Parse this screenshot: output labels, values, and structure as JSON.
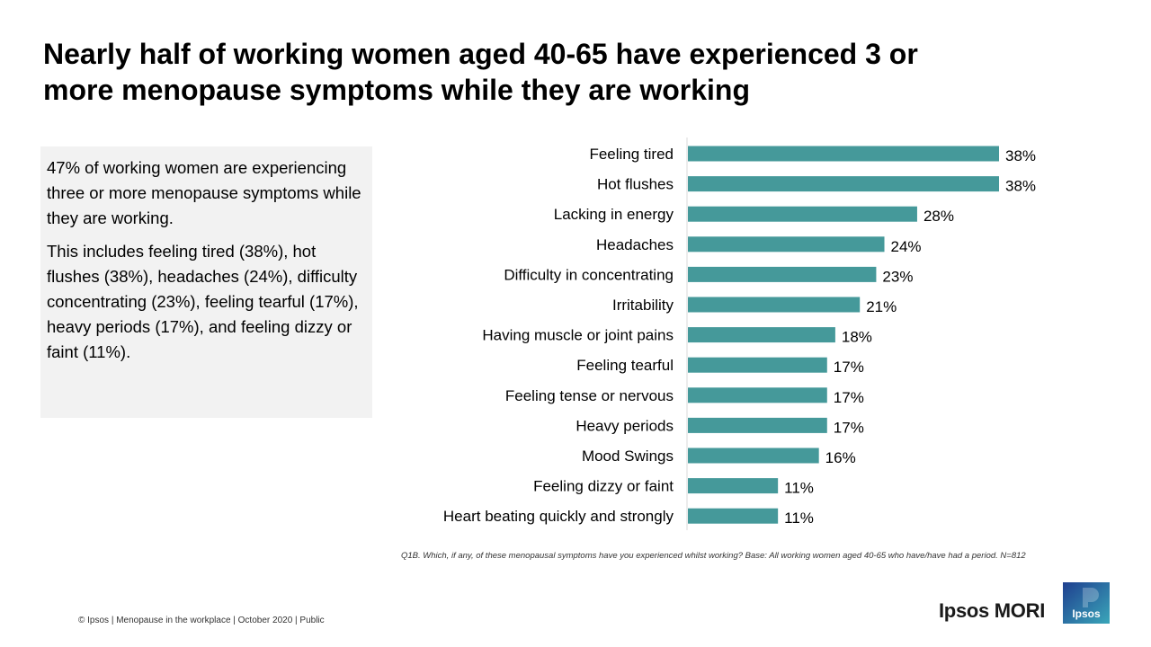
{
  "slide": {
    "title_line1": "Nearly half of working women aged 40-65 have experienced 3 or",
    "title_line2": "more menopause symptoms while they are working"
  },
  "summary": {
    "paragraph1": "47% of working women are experiencing three or more menopause symptoms while they are working.",
    "paragraph2": "This includes feeling tired (38%), hot flushes (38%), headaches (24%), difficulty concentrating (23%), feeling tearful (17%), heavy periods (17%), and feeling dizzy or faint (11%)."
  },
  "chart_data": {
    "type": "bar",
    "orientation": "horizontal",
    "categories": [
      "Feeling tired",
      "Hot flushes",
      "Lacking in energy",
      "Headaches",
      "Difficulty in concentrating",
      "Irritability",
      "Having muscle or joint pains",
      "Feeling tearful",
      "Feeling tense or nervous",
      "Heavy periods",
      "Mood Swings",
      "Feeling dizzy or faint",
      "Heart beating quickly and strongly"
    ],
    "values": [
      38,
      38,
      28,
      24,
      23,
      21,
      18,
      17,
      17,
      17,
      16,
      11,
      11
    ],
    "value_suffix": "%",
    "bar_color": "#45999a",
    "xlim": [
      0,
      40
    ],
    "grid": false,
    "legend": "none"
  },
  "footnote": "Q1B. Which, if any, of these menopausal symptoms have you experienced whilst working? Base: All working women aged 40-65 who have/have had a period. N=812",
  "footer": "© Ipsos | Menopause in the workplace | October 2020 | Public",
  "brand": {
    "wordmark": "Ipsos MORI",
    "logo_text": "Ipsos",
    "logo_colors": [
      "#1f3f8f",
      "#3aa6b9"
    ]
  }
}
